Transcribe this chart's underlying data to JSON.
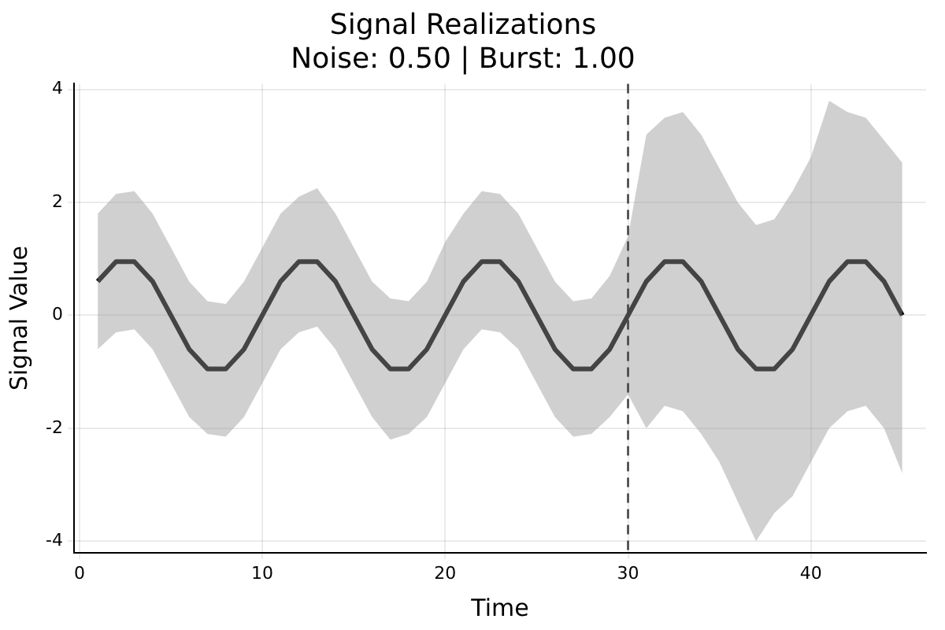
{
  "chart_data": {
    "type": "line",
    "title": "Signal Realizations",
    "subtitle": "Noise: 0.50 | Burst: 1.00",
    "xlabel": "Time",
    "ylabel": "Signal Value",
    "x": [
      1,
      2,
      3,
      4,
      5,
      6,
      7,
      8,
      9,
      10,
      11,
      12,
      13,
      14,
      15,
      16,
      17,
      18,
      19,
      20,
      21,
      22,
      23,
      24,
      25,
      26,
      27,
      28,
      29,
      30,
      31,
      32,
      33,
      34,
      35,
      36,
      37,
      38,
      39,
      40,
      41,
      42,
      43,
      44,
      45
    ],
    "series": [
      {
        "color": "#000000",
        "values": [
          0.6,
          0.95,
          0.95,
          0.6,
          0,
          -0.6,
          -0.95,
          -0.95,
          -0.6,
          0,
          0.6,
          0.95,
          0.95,
          0.6,
          0,
          -0.6,
          -0.95,
          -0.95,
          -0.6,
          0,
          0.6,
          0.95,
          0.95,
          0.6,
          0,
          -0.6,
          -0.95,
          -0.95,
          -0.6,
          0,
          0.6,
          0.95,
          0.95,
          0.6,
          0,
          -0.6,
          -0.95,
          -0.95,
          -0.6,
          0,
          0.6,
          0.95,
          0.95,
          0.6,
          0
        ],
        "upper": [
          1.8,
          2.15,
          2.2,
          1.8,
          1.2,
          0.6,
          0.25,
          0.2,
          0.6,
          1.2,
          1.8,
          2.1,
          2.25,
          1.8,
          1.2,
          0.6,
          0.3,
          0.25,
          0.6,
          1.3,
          1.8,
          2.2,
          2.15,
          1.8,
          1.2,
          0.6,
          0.25,
          0.3,
          0.7,
          1.4,
          3.2,
          3.5,
          3.6,
          3.2,
          2.6,
          2.0,
          1.6,
          1.7,
          2.2,
          2.8,
          3.8,
          3.6,
          3.5,
          3.1,
          2.7
        ],
        "lower": [
          -0.6,
          -0.3,
          -0.25,
          -0.6,
          -1.2,
          -1.8,
          -2.1,
          -2.15,
          -1.8,
          -1.2,
          -0.6,
          -0.3,
          -0.2,
          -0.6,
          -1.2,
          -1.8,
          -2.2,
          -2.1,
          -1.8,
          -1.2,
          -0.6,
          -0.25,
          -0.3,
          -0.6,
          -1.2,
          -1.8,
          -2.15,
          -2.1,
          -1.8,
          -1.4,
          -2.0,
          -1.6,
          -1.7,
          -2.1,
          -2.6,
          -3.3,
          -4.0,
          -3.5,
          -3.2,
          -2.6,
          -2.0,
          -1.7,
          -1.6,
          -2.0,
          -2.8
        ]
      }
    ],
    "xlim": [
      -0.3,
      46.3
    ],
    "xticks": [
      0,
      10,
      20,
      30,
      40
    ],
    "ylim": [
      -4.2,
      4.1
    ],
    "yticks": [
      -4,
      -2,
      0,
      2,
      4
    ],
    "grid": true,
    "legend": false,
    "line_style": "solid",
    "marker": "none",
    "ref_lines": [
      {
        "axis": "x",
        "value": 30,
        "color": "#444444",
        "line_style": "dashed"
      }
    ]
  }
}
